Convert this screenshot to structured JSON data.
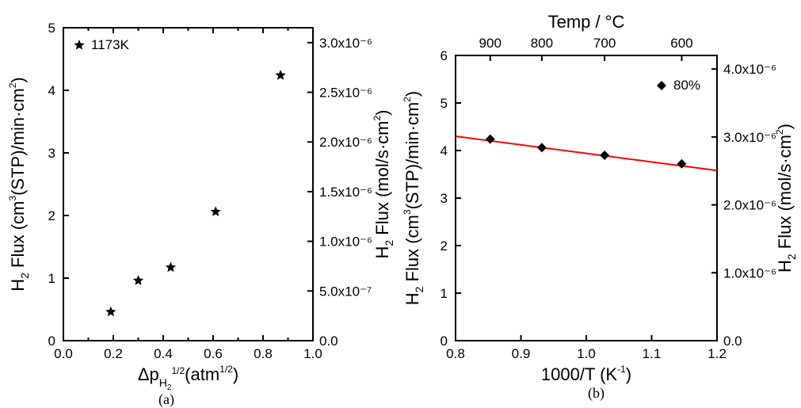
{
  "panel_a": {
    "type": "scatter",
    "sublabel": "(a)",
    "legend": {
      "marker": "star",
      "label": "1173K"
    },
    "x_axis": {
      "label_main": "Δp",
      "label_sub": "H",
      "label_sub2": "2",
      "label_sup": "1/2",
      "unit_pre": "(atm",
      "unit_sup": "1/2",
      "unit_post": ")",
      "lim": [
        0.0,
        1.0
      ],
      "ticks": [
        0.0,
        0.2,
        0.4,
        0.6,
        0.8,
        1.0
      ],
      "tick_labels": [
        "0.0",
        "0.2",
        "0.4",
        "0.6",
        "0.8",
        "1.0"
      ]
    },
    "y_left": {
      "label_pre": "H",
      "label_sub": "2",
      "label_mid": " Flux (cm",
      "label_sup1": "3",
      "label_mid2": "(STP)/min·cm",
      "label_sup2": "2",
      "label_post": ")",
      "lim": [
        0,
        5
      ],
      "ticks": [
        0,
        1,
        2,
        3,
        4,
        5
      ],
      "tick_labels": [
        "0",
        "1",
        "2",
        "3",
        "4",
        "5"
      ]
    },
    "y_right": {
      "label_pre": "H",
      "label_sub": "2",
      "label_mid": " Flux (mol/s·cm",
      "label_sup": "2",
      "label_post": ")",
      "lim": [
        0.0,
        3.15e-06
      ],
      "ticks": [
        0.0,
        5e-07,
        1e-06,
        1.5e-06,
        2e-06,
        2.5e-06,
        3e-06
      ],
      "tick_labels": [
        "0.0",
        "5.0x10⁻⁷",
        "1.0x10⁻⁶",
        "1.5x10⁻⁶",
        "2.0x10⁻⁶",
        "2.5x10⁻⁶",
        "3.0x10⁻⁶"
      ]
    },
    "points": [
      {
        "x": 0.19,
        "y": 0.46
      },
      {
        "x": 0.3,
        "y": 0.96
      },
      {
        "x": 0.43,
        "y": 1.17
      },
      {
        "x": 0.61,
        "y": 2.06
      },
      {
        "x": 0.87,
        "y": 4.24
      }
    ],
    "marker_color": "#000000",
    "axis_color": "#000000",
    "background": "#ffffff",
    "label_fontsize": 17,
    "axis_label_fontsize": 22
  },
  "panel_b": {
    "type": "scatter+line",
    "sublabel": "(b)",
    "legend": {
      "marker": "diamond",
      "label": "80%"
    },
    "x_bottom": {
      "label_pre": "1000/T (K",
      "label_sup": "-1",
      "label_post": ")",
      "lim": [
        0.8,
        1.2
      ],
      "ticks": [
        0.8,
        0.9,
        1.0,
        1.1,
        1.2
      ],
      "tick_labels": [
        "0.8",
        "0.9",
        "1.0",
        "1.1",
        "1.2"
      ]
    },
    "x_top": {
      "label": "Temp / °C",
      "ticks_at_bottomvals": [
        0.853,
        0.932,
        1.028,
        1.146
      ],
      "tick_labels": [
        "900",
        "800",
        "700",
        "600"
      ]
    },
    "y_left": {
      "label_pre": "H",
      "label_sub": "2",
      "label_mid": " Flux (cm",
      "label_sup1": "3",
      "label_mid2": "(STP)/min·cm",
      "label_sup2": "2",
      "label_post": ")",
      "lim": [
        0,
        6
      ],
      "ticks": [
        0,
        1,
        2,
        3,
        4,
        5,
        6
      ],
      "tick_labels": [
        "0",
        "1",
        "2",
        "3",
        "4",
        "5",
        "6"
      ]
    },
    "y_right": {
      "label_pre": "H",
      "label_sub": "2",
      "label_mid": " Flux (mol/s·cm",
      "label_sup": "2",
      "label_post": ")",
      "lim": [
        0.0,
        4.2e-06
      ],
      "ticks": [
        0.0,
        1e-06,
        2e-06,
        3e-06,
        4e-06
      ],
      "tick_labels": [
        "0.0",
        "1.0x10⁻⁶",
        "2.0x10⁻⁶",
        "3.0x10⁻⁶",
        "4.0x10⁻⁶"
      ]
    },
    "points": [
      {
        "x": 0.853,
        "y": 4.24
      },
      {
        "x": 0.932,
        "y": 4.06
      },
      {
        "x": 1.028,
        "y": 3.9
      },
      {
        "x": 1.146,
        "y": 3.72
      }
    ],
    "fit_line": {
      "x1": 0.8,
      "y1": 4.3,
      "x2": 1.2,
      "y2": 3.58,
      "color": "#ff0000",
      "width": 2
    },
    "marker_color": "#000000",
    "axis_color": "#000000",
    "background": "#ffffff"
  }
}
